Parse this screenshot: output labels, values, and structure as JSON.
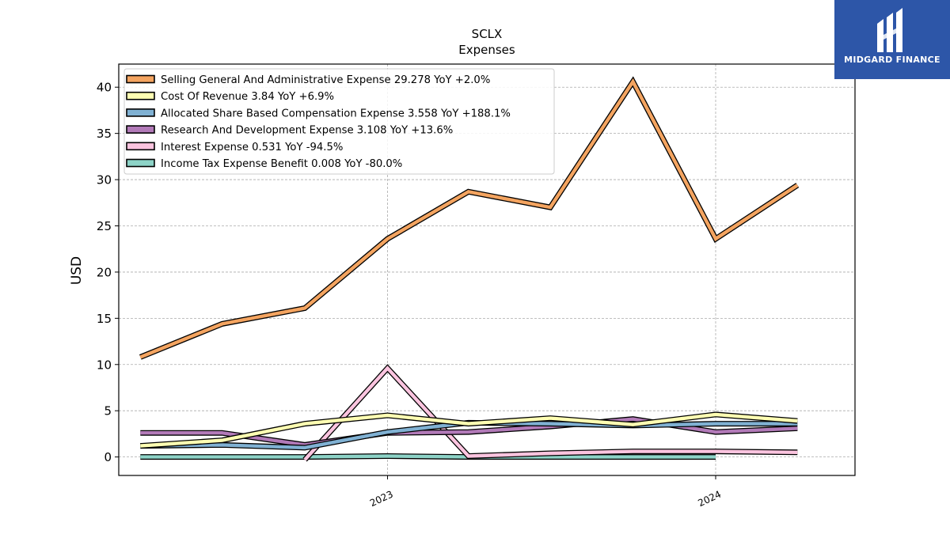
{
  "brand": {
    "name": "MIDGARD FINANCE",
    "color": "#2d56a8"
  },
  "chart_data": {
    "type": "line",
    "title": "SCLX",
    "subtitle": "Expenses",
    "xlabel": "",
    "ylabel": "USD",
    "ylim": [
      -2,
      42.5
    ],
    "yticks": [
      0,
      5,
      10,
      15,
      20,
      25,
      30,
      35,
      40
    ],
    "xlim": [
      "2022-03-08",
      "2024-06-04"
    ],
    "xticks": [
      {
        "date": "2023-01-01",
        "label": "2023"
      },
      {
        "date": "2024-01-01",
        "label": "2024"
      }
    ],
    "grid": true,
    "legend_position": "top-left",
    "x": [
      "2022-04-01",
      "2022-07-01",
      "2022-10-01",
      "2023-01-01",
      "2023-04-01",
      "2023-07-01",
      "2023-10-01",
      "2024-01-01",
      "2024-04-01"
    ],
    "series": [
      {
        "name": "Selling General And Administrative Expense",
        "legend": "Selling General And Administrative Expense  29.278 YoY +2.0%",
        "color": "#f4a460",
        "values": [
          10.8,
          14.4,
          16.1,
          23.6,
          28.7,
          27.0,
          40.6,
          23.6,
          29.4
        ]
      },
      {
        "name": "Cost Of Revenue",
        "legend": "Cost Of Revenue  3.84 YoY +6.9%",
        "color": "#ffffb3",
        "values": [
          1.2,
          1.8,
          3.6,
          4.5,
          3.6,
          4.2,
          3.5,
          4.6,
          3.9
        ]
      },
      {
        "name": "Allocated Share Based Compensation Expense",
        "legend": "Allocated Share Based Compensation Expense  3.558 YoY +188.1%",
        "color": "#80b1d3",
        "values": [
          1.2,
          1.3,
          1.0,
          2.7,
          3.7,
          3.6,
          3.4,
          3.6,
          3.6
        ]
      },
      {
        "name": "Research And Development Expense",
        "legend": "Research And Development Expense  3.108 YoY +13.6%",
        "color": "#b27ab8",
        "values": [
          2.6,
          2.6,
          1.3,
          2.6,
          2.7,
          3.3,
          4.1,
          2.7,
          3.1
        ]
      },
      {
        "name": "Interest Expense",
        "legend": "Interest Expense  0.531 YoY -94.5%",
        "color": "#fbc4df",
        "values": [
          null,
          null,
          -0.3,
          9.6,
          0.1,
          0.4,
          0.6,
          0.6,
          0.5
        ]
      },
      {
        "name": "Income Tax Expense Benefit",
        "legend": "Income Tax Expense Benefit  0.008 YoY -80.0%",
        "color": "#8dd3c7",
        "values": [
          0.0,
          0.0,
          0.0,
          0.1,
          0.0,
          0.0,
          0.0,
          0.0,
          null
        ]
      }
    ]
  }
}
